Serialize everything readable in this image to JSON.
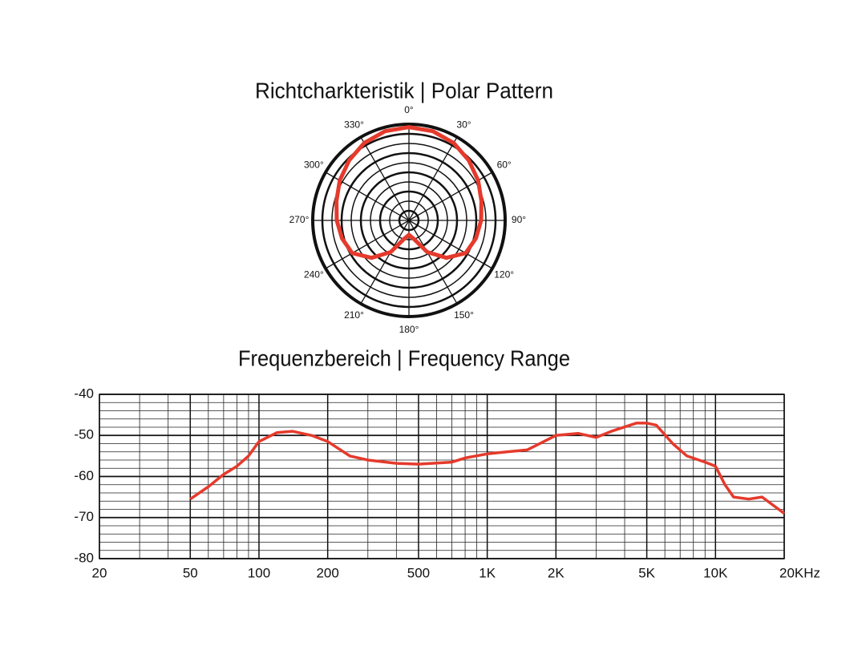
{
  "chart_data": [
    {
      "type": "polar",
      "title": "Richtcharkteristik | Polar Pattern",
      "color": "#e53a2c",
      "theta": [
        0,
        15,
        30,
        45,
        60,
        75,
        90,
        105,
        120,
        135,
        150,
        165,
        180,
        195,
        210,
        225,
        240,
        255,
        270,
        285,
        300,
        315,
        330,
        345
      ],
      "values": [
        0.97,
        0.96,
        0.93,
        0.88,
        0.83,
        0.78,
        0.75,
        0.72,
        0.68,
        0.55,
        0.38,
        0.2,
        0.15,
        0.2,
        0.38,
        0.55,
        0.68,
        0.72,
        0.75,
        0.78,
        0.83,
        0.88,
        0.93,
        0.96
      ],
      "rlim": [
        0,
        1
      ],
      "thetaticks": [
        {
          "value": 0,
          "label": "0°"
        },
        {
          "value": 30,
          "label": "30°"
        },
        {
          "value": 60,
          "label": "60°"
        },
        {
          "value": 90,
          "label": "90°"
        },
        {
          "value": 120,
          "label": "120°"
        },
        {
          "value": 150,
          "label": "150°"
        },
        {
          "value": 180,
          "label": "180°"
        },
        {
          "value": 210,
          "label": "210°"
        },
        {
          "value": 240,
          "label": "240°"
        },
        {
          "value": 270,
          "label": "270°"
        },
        {
          "value": 300,
          "label": "300°"
        },
        {
          "value": 330,
          "label": "330°"
        }
      ]
    },
    {
      "type": "line",
      "title": "Frequenzbereich | Frequency Range",
      "color": "#e53a2c",
      "xscale": "log",
      "grid": true,
      "x": [
        50,
        60,
        70,
        80,
        90,
        100,
        120,
        140,
        170,
        200,
        220,
        250,
        300,
        400,
        500,
        700,
        800,
        1000,
        1500,
        2000,
        2500,
        3000,
        3500,
        4500,
        5000,
        5500,
        6500,
        7500,
        9000,
        10000,
        11000,
        12000,
        14000,
        16000,
        20000
      ],
      "values": [
        -65.5,
        -62.5,
        -59.5,
        -57.5,
        -55,
        -51.5,
        -49.3,
        -49,
        -50,
        -51.5,
        -53,
        -55,
        -56,
        -56.8,
        -57,
        -56.5,
        -55.5,
        -54.5,
        -53.5,
        -50,
        -49.5,
        -50.5,
        -49,
        -47,
        -47,
        -47.5,
        -52,
        -55,
        -56.5,
        -57.5,
        -62,
        -65,
        -65.5,
        -65,
        -69
      ],
      "xlim": [
        20,
        20000
      ],
      "ylim": [
        -80,
        -40
      ],
      "xticks": [
        20,
        50,
        100,
        200,
        500,
        {
          "value": 1000,
          "label": "1K"
        },
        {
          "value": 2000,
          "label": "2K"
        },
        {
          "value": 5000,
          "label": "5K"
        },
        {
          "value": 10000,
          "label": "10K"
        },
        {
          "value": 20000,
          "label": "20KHz"
        }
      ],
      "yticks": [
        -40,
        -50,
        -60,
        -70,
        -80
      ]
    }
  ]
}
